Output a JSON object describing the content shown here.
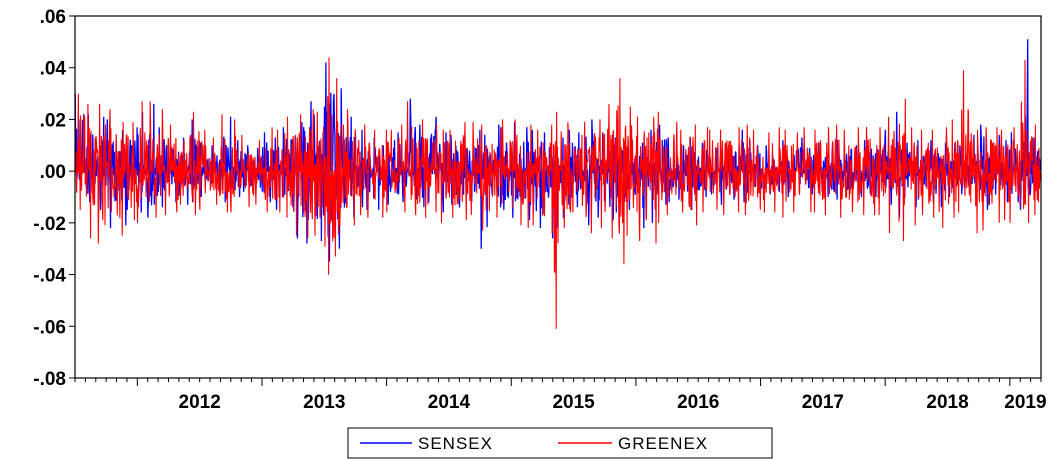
{
  "chart_data": {
    "type": "line",
    "title": "",
    "xlabel": "",
    "ylabel": "",
    "x_range": [
      "2011-07-01",
      "2019-03-31"
    ],
    "x_tick_labels": [
      "2012",
      "2013",
      "2014",
      "2015",
      "2016",
      "2017",
      "2018",
      "2019"
    ],
    "ylim": [
      -0.08,
      0.06
    ],
    "y_ticks": [
      0.06,
      0.04,
      0.02,
      0.0,
      -0.02,
      -0.04,
      -0.06,
      -0.08
    ],
    "y_tick_labels": [
      ".06",
      ".04",
      ".02",
      ".00",
      "-.02",
      "-.04",
      "-.06",
      "-.08"
    ],
    "grid": false,
    "legend_position": "bottom-center",
    "series": [
      {
        "name": "SENSEX",
        "color": "#0000ff",
        "x": [
          "2011-07",
          "2011-08",
          "2011-09",
          "2011-10",
          "2011-11",
          "2011-12",
          "2012-01",
          "2012-02",
          "2012-03",
          "2012-04",
          "2012-05",
          "2012-06",
          "2012-07",
          "2012-08",
          "2012-09",
          "2012-10",
          "2012-11",
          "2012-12",
          "2013-01",
          "2013-02",
          "2013-03",
          "2013-04",
          "2013-05",
          "2013-06",
          "2013-07",
          "2013-08",
          "2013-09",
          "2013-10",
          "2013-11",
          "2013-12",
          "2014-01",
          "2014-02",
          "2014-03",
          "2014-04",
          "2014-05",
          "2014-06",
          "2014-07",
          "2014-08",
          "2014-09",
          "2014-10",
          "2014-11",
          "2014-12",
          "2015-01",
          "2015-02",
          "2015-03",
          "2015-04",
          "2015-05",
          "2015-06",
          "2015-07",
          "2015-08",
          "2015-09",
          "2015-10",
          "2015-11",
          "2015-12",
          "2016-01",
          "2016-02",
          "2016-03",
          "2016-04",
          "2016-05",
          "2016-06",
          "2016-07",
          "2016-08",
          "2016-09",
          "2016-10",
          "2016-11",
          "2016-12",
          "2017-01",
          "2017-02",
          "2017-03",
          "2017-04",
          "2017-05",
          "2017-06",
          "2017-07",
          "2017-08",
          "2017-09",
          "2017-10",
          "2017-11",
          "2017-12",
          "2018-01",
          "2018-02",
          "2018-03",
          "2018-04",
          "2018-05",
          "2018-06",
          "2018-07",
          "2018-08",
          "2018-09",
          "2018-10",
          "2018-11",
          "2018-12",
          "2019-01",
          "2019-02",
          "2019-03"
        ],
        "high": [
          0.03,
          0.022,
          0.021,
          0.02,
          0.016,
          0.017,
          0.023,
          0.026,
          0.017,
          0.012,
          0.013,
          0.02,
          0.011,
          0.01,
          0.021,
          0.012,
          0.01,
          0.009,
          0.015,
          0.013,
          0.017,
          0.019,
          0.027,
          0.022,
          0.042,
          0.032,
          0.021,
          0.016,
          0.013,
          0.01,
          0.012,
          0.015,
          0.028,
          0.018,
          0.021,
          0.015,
          0.014,
          0.013,
          0.016,
          0.014,
          0.018,
          0.017,
          0.019,
          0.017,
          0.016,
          0.015,
          0.013,
          0.016,
          0.015,
          0.02,
          0.015,
          0.014,
          0.013,
          0.012,
          0.011,
          0.016,
          0.018,
          0.013,
          0.01,
          0.013,
          0.011,
          0.009,
          0.01,
          0.01,
          0.016,
          0.01,
          0.01,
          0.009,
          0.012,
          0.013,
          0.009,
          0.011,
          0.011,
          0.012,
          0.012,
          0.01,
          0.012,
          0.013,
          0.016,
          0.023,
          0.011,
          0.012,
          0.012,
          0.011,
          0.011,
          0.01,
          0.014,
          0.018,
          0.014,
          0.012,
          0.015,
          0.051,
          0.013
        ],
        "low": [
          -0.005,
          -0.012,
          -0.015,
          -0.022,
          -0.021,
          -0.015,
          -0.016,
          -0.018,
          -0.014,
          -0.012,
          -0.013,
          -0.012,
          -0.01,
          -0.008,
          -0.012,
          -0.01,
          -0.008,
          -0.009,
          -0.012,
          -0.015,
          -0.014,
          -0.026,
          -0.028,
          -0.027,
          -0.035,
          -0.03,
          -0.018,
          -0.014,
          -0.015,
          -0.015,
          -0.013,
          -0.012,
          -0.011,
          -0.014,
          -0.012,
          -0.016,
          -0.013,
          -0.014,
          -0.012,
          -0.03,
          -0.014,
          -0.015,
          -0.018,
          -0.019,
          -0.022,
          -0.026,
          -0.022,
          -0.018,
          -0.014,
          -0.021,
          -0.018,
          -0.019,
          -0.016,
          -0.015,
          -0.022,
          -0.02,
          -0.013,
          -0.012,
          -0.011,
          -0.015,
          -0.01,
          -0.009,
          -0.013,
          -0.011,
          -0.012,
          -0.01,
          -0.009,
          -0.008,
          -0.01,
          -0.009,
          -0.009,
          -0.008,
          -0.01,
          -0.011,
          -0.012,
          -0.01,
          -0.009,
          -0.01,
          -0.013,
          -0.018,
          -0.014,
          -0.011,
          -0.012,
          -0.014,
          -0.01,
          -0.009,
          -0.012,
          -0.015,
          -0.013,
          -0.012,
          -0.012,
          -0.015,
          -0.009
        ]
      },
      {
        "name": "GREENEX",
        "color": "#ff0000",
        "x": [
          "2011-07",
          "2011-08",
          "2011-09",
          "2011-10",
          "2011-11",
          "2011-12",
          "2012-01",
          "2012-02",
          "2012-03",
          "2012-04",
          "2012-05",
          "2012-06",
          "2012-07",
          "2012-08",
          "2012-09",
          "2012-10",
          "2012-11",
          "2012-12",
          "2013-01",
          "2013-02",
          "2013-03",
          "2013-04",
          "2013-05",
          "2013-06",
          "2013-07",
          "2013-08",
          "2013-09",
          "2013-10",
          "2013-11",
          "2013-12",
          "2014-01",
          "2014-02",
          "2014-03",
          "2014-04",
          "2014-05",
          "2014-06",
          "2014-07",
          "2014-08",
          "2014-09",
          "2014-10",
          "2014-11",
          "2014-12",
          "2015-01",
          "2015-02",
          "2015-03",
          "2015-04",
          "2015-05",
          "2015-06",
          "2015-07",
          "2015-08",
          "2015-09",
          "2015-10",
          "2015-11",
          "2015-12",
          "2016-01",
          "2016-02",
          "2016-03",
          "2016-04",
          "2016-05",
          "2016-06",
          "2016-07",
          "2016-08",
          "2016-09",
          "2016-10",
          "2016-11",
          "2016-12",
          "2017-01",
          "2017-02",
          "2017-03",
          "2017-04",
          "2017-05",
          "2017-06",
          "2017-07",
          "2017-08",
          "2017-09",
          "2017-10",
          "2017-11",
          "2017-12",
          "2018-01",
          "2018-02",
          "2018-03",
          "2018-04",
          "2018-05",
          "2018-06",
          "2018-07",
          "2018-08",
          "2018-09",
          "2018-10",
          "2018-11",
          "2018-12",
          "2019-01",
          "2019-02",
          "2019-03"
        ],
        "high": [
          0.03,
          0.026,
          0.026,
          0.024,
          0.019,
          0.019,
          0.027,
          0.027,
          0.024,
          0.018,
          0.012,
          0.023,
          0.016,
          0.013,
          0.022,
          0.02,
          0.014,
          0.012,
          0.017,
          0.016,
          0.021,
          0.022,
          0.024,
          0.023,
          0.044,
          0.036,
          0.024,
          0.018,
          0.016,
          0.016,
          0.016,
          0.018,
          0.027,
          0.02,
          0.018,
          0.016,
          0.016,
          0.019,
          0.019,
          0.018,
          0.017,
          0.02,
          0.02,
          0.018,
          0.016,
          0.018,
          0.023,
          0.019,
          0.014,
          0.019,
          0.02,
          0.026,
          0.036,
          0.025,
          0.021,
          0.021,
          0.023,
          0.019,
          0.016,
          0.018,
          0.017,
          0.016,
          0.016,
          0.017,
          0.018,
          0.016,
          0.015,
          0.017,
          0.016,
          0.015,
          0.017,
          0.016,
          0.017,
          0.018,
          0.016,
          0.017,
          0.017,
          0.017,
          0.021,
          0.028,
          0.017,
          0.016,
          0.016,
          0.017,
          0.02,
          0.039,
          0.022,
          0.017,
          0.017,
          0.016,
          0.017,
          0.043,
          0.018
        ],
        "low": [
          -0.015,
          -0.026,
          -0.028,
          -0.027,
          -0.025,
          -0.019,
          -0.02,
          -0.018,
          -0.017,
          -0.016,
          -0.013,
          -0.017,
          -0.015,
          -0.013,
          -0.016,
          -0.016,
          -0.014,
          -0.013,
          -0.016,
          -0.016,
          -0.018,
          -0.025,
          -0.026,
          -0.025,
          -0.04,
          -0.033,
          -0.021,
          -0.017,
          -0.018,
          -0.018,
          -0.016,
          -0.016,
          -0.017,
          -0.018,
          -0.016,
          -0.02,
          -0.018,
          -0.019,
          -0.017,
          -0.023,
          -0.018,
          -0.019,
          -0.021,
          -0.022,
          -0.021,
          -0.024,
          -0.061,
          -0.022,
          -0.018,
          -0.024,
          -0.022,
          -0.026,
          -0.036,
          -0.025,
          -0.027,
          -0.028,
          -0.02,
          -0.017,
          -0.016,
          -0.021,
          -0.016,
          -0.015,
          -0.017,
          -0.016,
          -0.017,
          -0.015,
          -0.016,
          -0.016,
          -0.018,
          -0.016,
          -0.016,
          -0.016,
          -0.017,
          -0.018,
          -0.016,
          -0.017,
          -0.017,
          -0.017,
          -0.024,
          -0.027,
          -0.021,
          -0.017,
          -0.018,
          -0.022,
          -0.018,
          -0.016,
          -0.024,
          -0.023,
          -0.02,
          -0.019,
          -0.02,
          -0.02,
          -0.017
        ]
      }
    ]
  },
  "legend": {
    "items": [
      {
        "label": "SENSEX",
        "color": "#0000ff"
      },
      {
        "label": "GREENEX",
        "color": "#ff0000"
      }
    ]
  }
}
